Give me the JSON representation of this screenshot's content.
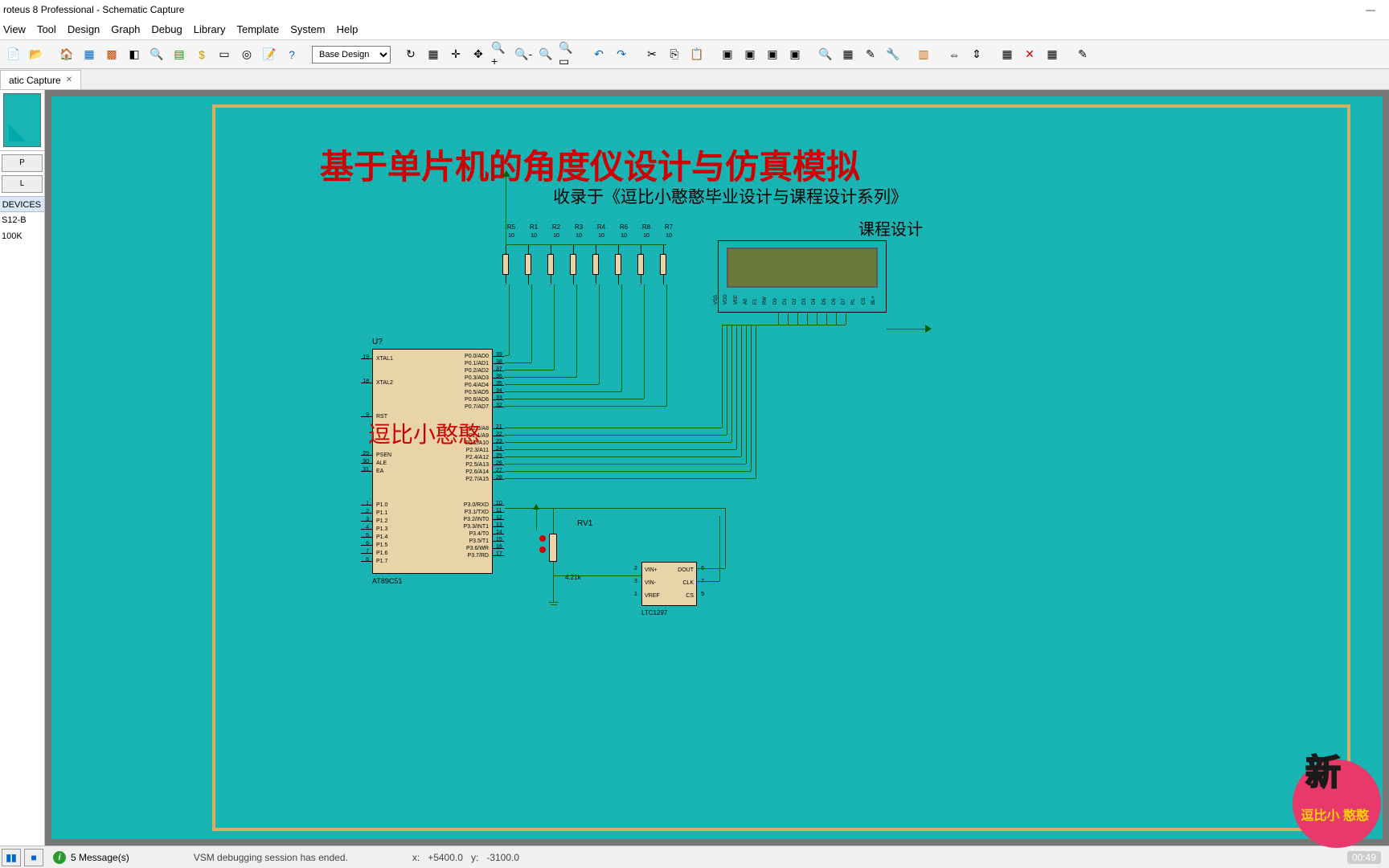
{
  "window": {
    "title": "roteus 8 Professional - Schematic Capture",
    "min": "—",
    "max": "☐",
    "close": "✕"
  },
  "menu": [
    "View",
    "Tool",
    "Design",
    "Graph",
    "Debug",
    "Library",
    "Template",
    "System",
    "Help"
  ],
  "design_combo": "Base Design",
  "tab": {
    "label": "atic Capture",
    "close": "✕"
  },
  "devices_header": "DEVICES",
  "devices": [
    "S12-B",
    "100K"
  ],
  "schematic": {
    "title": "基于单片机的角度仪设计与仿真模拟",
    "subtitle1": "收录于《逗比小憨憨毕业设计与课程设计系列》",
    "subtitle2": "课程设计",
    "watermark": "逗比小憨憨",
    "mcu": {
      "ref": "U?",
      "name": "AT89C51",
      "left_pins": [
        {
          "n": "19",
          "lbl": "XTAL1"
        },
        {
          "n": "18",
          "lbl": "XTAL2"
        },
        {
          "n": "9",
          "lbl": "RST"
        },
        {
          "n": "29",
          "lbl": "PSEN"
        },
        {
          "n": "30",
          "lbl": "ALE"
        },
        {
          "n": "31",
          "lbl": "EA"
        },
        {
          "n": "1",
          "lbl": "P1.0"
        },
        {
          "n": "2",
          "lbl": "P1.1"
        },
        {
          "n": "3",
          "lbl": "P1.2"
        },
        {
          "n": "4",
          "lbl": "P1.3"
        },
        {
          "n": "5",
          "lbl": "P1.4"
        },
        {
          "n": "6",
          "lbl": "P1.5"
        },
        {
          "n": "7",
          "lbl": "P1.6"
        },
        {
          "n": "8",
          "lbl": "P1.7"
        }
      ],
      "right_pins": [
        {
          "n": "39",
          "lbl": "P0.0/AD0"
        },
        {
          "n": "38",
          "lbl": "P0.1/AD1"
        },
        {
          "n": "37",
          "lbl": "P0.2/AD2"
        },
        {
          "n": "36",
          "lbl": "P0.3/AD3"
        },
        {
          "n": "35",
          "lbl": "P0.4/AD4"
        },
        {
          "n": "34",
          "lbl": "P0.5/AD5"
        },
        {
          "n": "33",
          "lbl": "P0.6/AD6"
        },
        {
          "n": "32",
          "lbl": "P0.7/AD7"
        },
        {
          "n": "21",
          "lbl": "P2.0/A8"
        },
        {
          "n": "22",
          "lbl": "P2.1/A9"
        },
        {
          "n": "23",
          "lbl": "P2.2/A10"
        },
        {
          "n": "24",
          "lbl": "P2.3/A11"
        },
        {
          "n": "25",
          "lbl": "P2.4/A12"
        },
        {
          "n": "26",
          "lbl": "P2.5/A13"
        },
        {
          "n": "27",
          "lbl": "P2.6/A14"
        },
        {
          "n": "28",
          "lbl": "P2.7/A15"
        },
        {
          "n": "10",
          "lbl": "P3.0/RXD"
        },
        {
          "n": "11",
          "lbl": "P3.1/TXD"
        },
        {
          "n": "12",
          "lbl": "P3.2/INT0"
        },
        {
          "n": "13",
          "lbl": "P3.3/INT1"
        },
        {
          "n": "14",
          "lbl": "P3.4/T0"
        },
        {
          "n": "15",
          "lbl": "P3.5/T1"
        },
        {
          "n": "16",
          "lbl": "P3.6/WR"
        },
        {
          "n": "17",
          "lbl": "P3.7/RD"
        }
      ]
    },
    "resistors": [
      {
        "ref": "R5",
        "val": "10"
      },
      {
        "ref": "R1",
        "val": "10"
      },
      {
        "ref": "R2",
        "val": "10"
      },
      {
        "ref": "R3",
        "val": "10"
      },
      {
        "ref": "R4",
        "val": "10"
      },
      {
        "ref": "R6",
        "val": "10"
      },
      {
        "ref": "R8",
        "val": "10"
      },
      {
        "ref": "R7",
        "val": "10"
      }
    ],
    "lcd_pins": [
      "VSS",
      "VDD",
      "VEE",
      "A0",
      "E1",
      "RW",
      "D0",
      "D1",
      "D2",
      "D3",
      "D4",
      "D5",
      "D6",
      "D7",
      "RL",
      "CS",
      "BL+"
    ],
    "adc": {
      "name": "LTC1297",
      "left": [
        "VIN+",
        "VIN-",
        "VREF"
      ],
      "right": [
        "DOUT",
        "CLK",
        "CS"
      ],
      "lnums": [
        "2",
        "3",
        "1"
      ],
      "rnums": [
        "6",
        "7",
        "5"
      ]
    },
    "rv1": {
      "ref": "RV1",
      "val": "4.21k"
    }
  },
  "status": {
    "messages": "5 Message(s)",
    "info": "VSM debugging session has ended.",
    "coord_x_lbl": "x:",
    "coord_x": "+5400.0",
    "coord_y_lbl": "y:",
    "coord_y": "-3100.0"
  },
  "badge": {
    "big": "新",
    "small": "逗比小\n憨憨"
  },
  "time": "00:49",
  "colors": {
    "canvas": "#19b4b4",
    "sheet_border": "#d4b060",
    "component": "#e8d4a8",
    "title_red": "#d00000",
    "lcd_screen": "#6b7a3a",
    "wire": "#006000"
  }
}
